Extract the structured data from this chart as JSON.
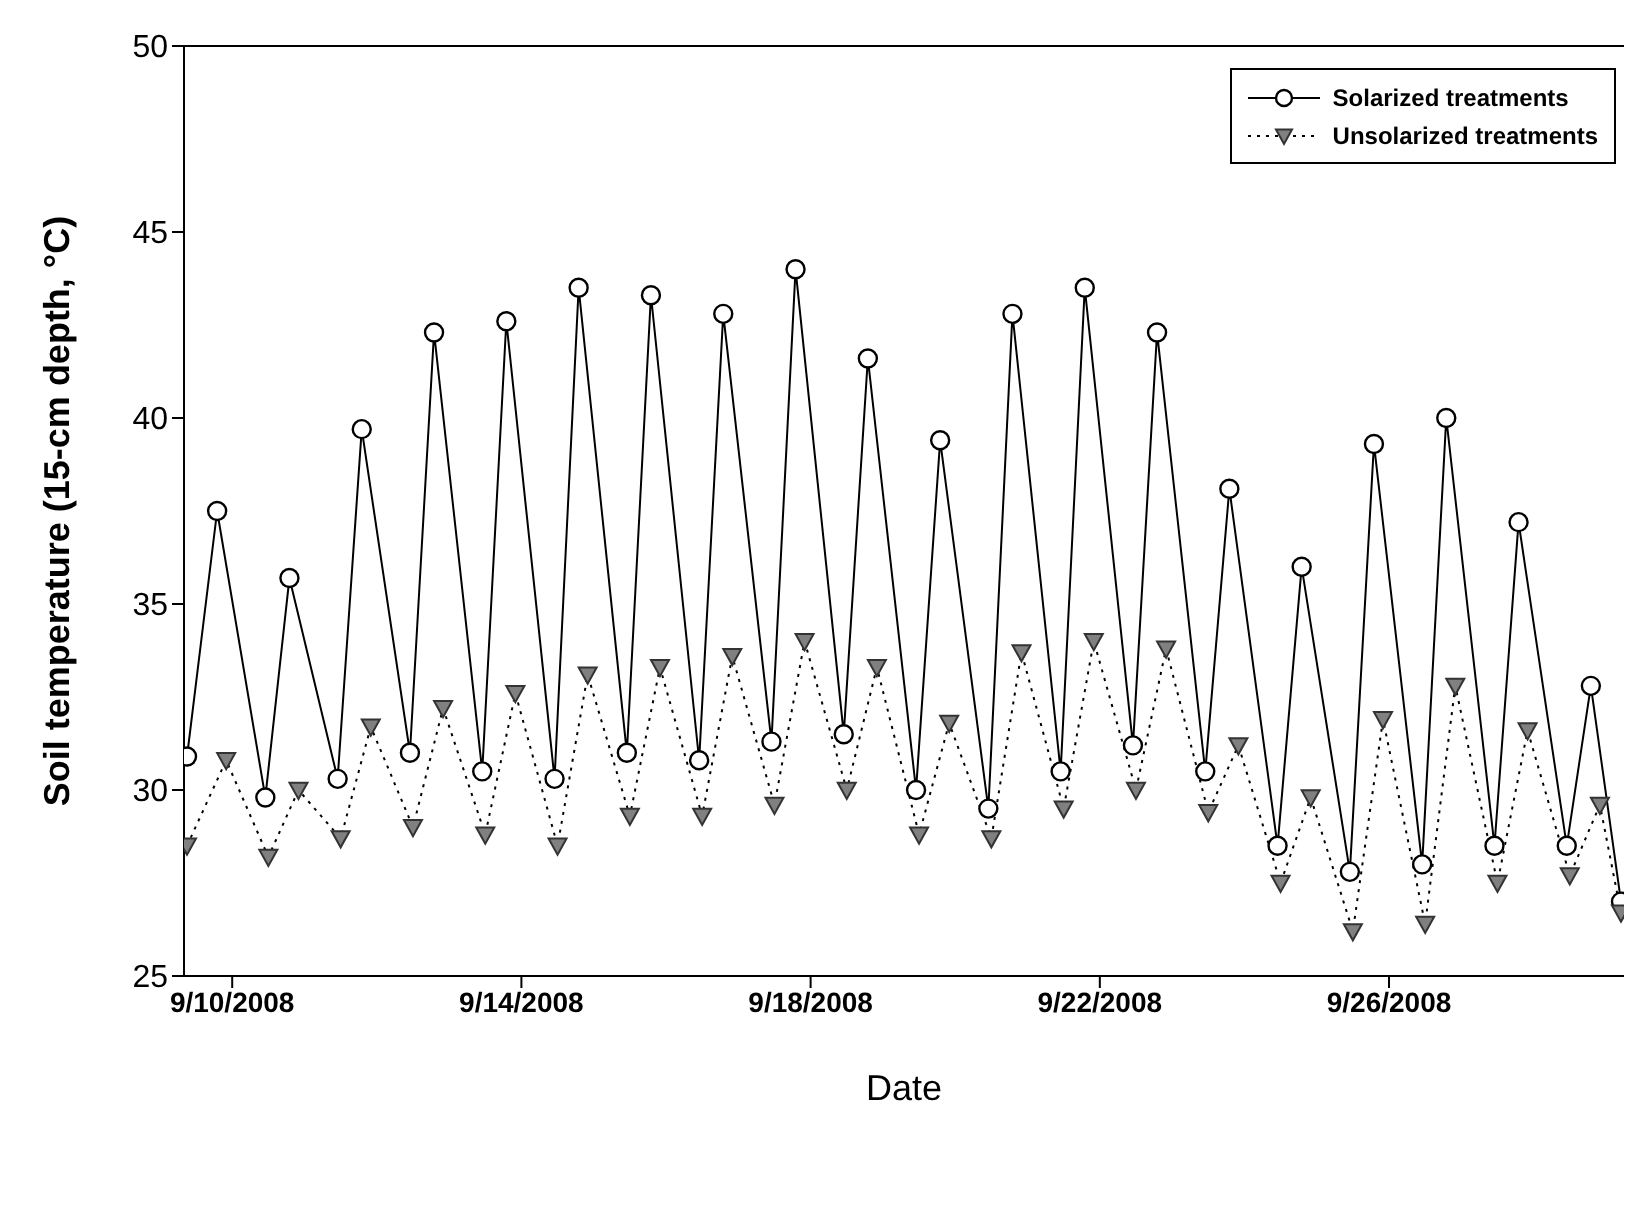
{
  "chart_data": {
    "type": "line",
    "xlabel": "Date",
    "ylabel": "Soil temperature (15-cm depth, °C)",
    "xlim": [
      "2008-09-09T08:00",
      "2008-09-29T06:00"
    ],
    "xticks": [
      {
        "value": "2008-09-10",
        "label": "9/10/2008"
      },
      {
        "value": "2008-09-14",
        "label": "9/14/2008"
      },
      {
        "value": "2008-09-18",
        "label": "9/18/2008"
      },
      {
        "value": "2008-09-22",
        "label": "9/22/2008"
      },
      {
        "value": "2008-09-26",
        "label": "9/26/2008"
      }
    ],
    "ylim": [
      25,
      50
    ],
    "yticks": [
      25,
      30,
      35,
      40,
      45,
      50
    ],
    "grid": false,
    "legend": "top right",
    "series": [
      {
        "name": "Solarized treatments",
        "color": "#000000",
        "marker": "circle",
        "line_style": "solid",
        "x": [
          "2008-09-09T09:00",
          "2008-09-09T19:00",
          "2008-09-10T11:00",
          "2008-09-10T19:00",
          "2008-09-11T11:00",
          "2008-09-11T19:00",
          "2008-09-12T11:00",
          "2008-09-12T19:00",
          "2008-09-13T11:00",
          "2008-09-13T19:00",
          "2008-09-14T11:00",
          "2008-09-14T19:00",
          "2008-09-15T11:00",
          "2008-09-15T19:00",
          "2008-09-16T11:00",
          "2008-09-16T19:00",
          "2008-09-17T11:00",
          "2008-09-17T19:00",
          "2008-09-18T11:00",
          "2008-09-18T19:00",
          "2008-09-19T11:00",
          "2008-09-19T19:00",
          "2008-09-20T11:00",
          "2008-09-20T19:00",
          "2008-09-21T11:00",
          "2008-09-21T19:00",
          "2008-09-22T11:00",
          "2008-09-22T19:00",
          "2008-09-23T11:00",
          "2008-09-23T19:00",
          "2008-09-24T11:00",
          "2008-09-24T19:00",
          "2008-09-25T11:00",
          "2008-09-25T19:00",
          "2008-09-26T11:00",
          "2008-09-26T19:00",
          "2008-09-27T11:00",
          "2008-09-27T19:00",
          "2008-09-28T11:00",
          "2008-09-28T19:00",
          "2008-09-29T05:00"
        ],
        "values": [
          30.9,
          37.5,
          29.8,
          35.7,
          30.3,
          39.7,
          31.0,
          42.3,
          30.5,
          42.6,
          30.3,
          43.5,
          31.0,
          43.3,
          30.8,
          42.8,
          31.3,
          44.0,
          31.5,
          41.6,
          30.0,
          39.4,
          29.5,
          42.8,
          30.5,
          43.5,
          31.2,
          42.3,
          30.5,
          38.1,
          28.5,
          36.0,
          27.8,
          39.3,
          28.0,
          40.0,
          28.5,
          37.2,
          28.5,
          32.8,
          27.0
        ]
      },
      {
        "name": "Unsolarized treatments",
        "color": "#808080",
        "marker": "triangle",
        "line_style": "dotted",
        "x": [
          "2008-09-09T09:00",
          "2008-09-09T22:00",
          "2008-09-10T12:00",
          "2008-09-10T22:00",
          "2008-09-11T12:00",
          "2008-09-11T22:00",
          "2008-09-12T12:00",
          "2008-09-12T22:00",
          "2008-09-13T12:00",
          "2008-09-13T22:00",
          "2008-09-14T12:00",
          "2008-09-14T22:00",
          "2008-09-15T12:00",
          "2008-09-15T22:00",
          "2008-09-16T12:00",
          "2008-09-16T22:00",
          "2008-09-17T12:00",
          "2008-09-17T22:00",
          "2008-09-18T12:00",
          "2008-09-18T22:00",
          "2008-09-19T12:00",
          "2008-09-19T22:00",
          "2008-09-20T12:00",
          "2008-09-20T22:00",
          "2008-09-21T12:00",
          "2008-09-21T22:00",
          "2008-09-22T12:00",
          "2008-09-22T22:00",
          "2008-09-23T12:00",
          "2008-09-23T22:00",
          "2008-09-24T12:00",
          "2008-09-24T22:00",
          "2008-09-25T12:00",
          "2008-09-25T22:00",
          "2008-09-26T12:00",
          "2008-09-26T22:00",
          "2008-09-27T12:00",
          "2008-09-27T22:00",
          "2008-09-28T12:00",
          "2008-09-28T22:00",
          "2008-09-29T05:00"
        ],
        "values": [
          28.5,
          30.8,
          28.2,
          30.0,
          28.7,
          31.7,
          29.0,
          32.2,
          28.8,
          32.6,
          28.5,
          33.1,
          29.3,
          33.3,
          29.3,
          33.6,
          29.6,
          34.0,
          30.0,
          33.3,
          28.8,
          31.8,
          28.7,
          33.7,
          29.5,
          34.0,
          30.0,
          33.8,
          29.4,
          31.2,
          27.5,
          29.8,
          26.2,
          31.9,
          26.4,
          32.8,
          27.5,
          31.6,
          27.7,
          29.6,
          26.7
        ]
      }
    ]
  }
}
